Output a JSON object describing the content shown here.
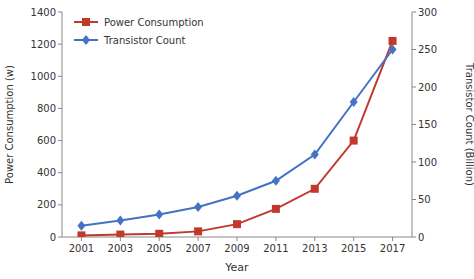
{
  "chart_data": {
    "type": "line",
    "x": [
      2001,
      2003,
      2005,
      2007,
      2009,
      2011,
      2013,
      2015,
      2017
    ],
    "xlim": [
      2000,
      2018
    ],
    "xticks": [
      2001,
      2003,
      2005,
      2007,
      2009,
      2011,
      2013,
      2015,
      2017
    ],
    "xlabel": "Year",
    "ylabel": "Power Consumption (w)",
    "y2label": "Transistor Count (Billion)",
    "ylim": [
      0,
      1400
    ],
    "yticks": [
      0,
      200,
      400,
      600,
      800,
      1000,
      1200,
      1400
    ],
    "y2lim": [
      0,
      300
    ],
    "y2ticks": [
      0,
      50,
      100,
      150,
      200,
      250,
      300
    ],
    "grid": false,
    "legend": "upper left",
    "series": [
      {
        "name": "Power Consumption",
        "color": "#c0392b",
        "marker": "square",
        "values": [
          10,
          15,
          20,
          35,
          80,
          175,
          300,
          600,
          1220
        ]
      },
      {
        "name": "Transistor Count",
        "color": "#4472c4",
        "marker": "diamond",
        "axis": "y2",
        "values": [
          15,
          22,
          30,
          40,
          55,
          75,
          110,
          180,
          250
        ]
      }
    ]
  }
}
